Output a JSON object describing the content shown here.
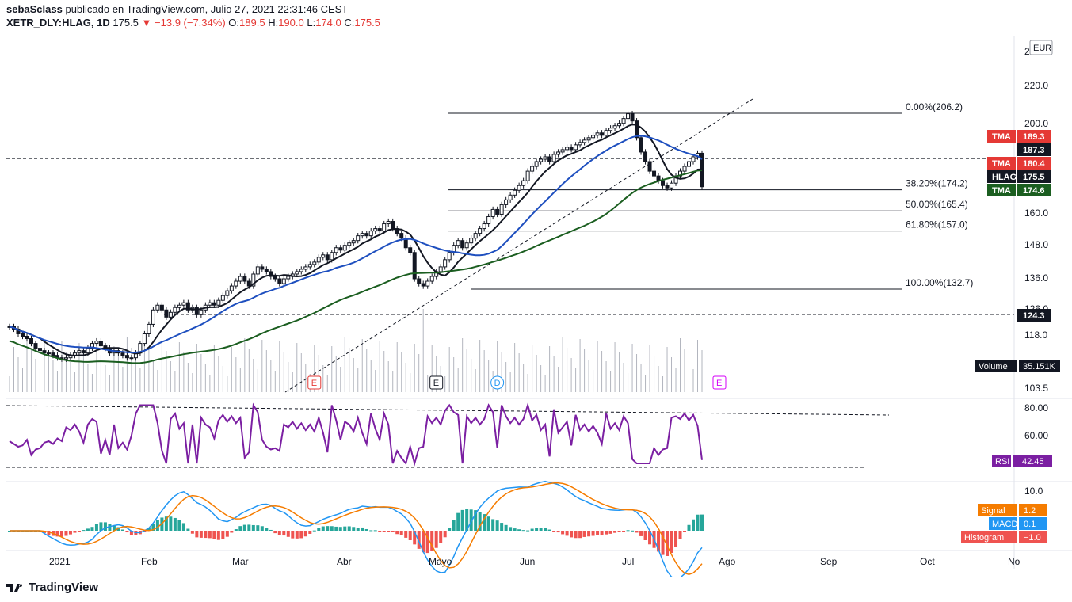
{
  "header": {
    "author": "sebaSclass",
    "published_text": "publicado en TradingView.com, Julio 27, 2021 22:31:46 CEST",
    "symbol": "XETR_DLY:HLAG, 1D",
    "last": "175.5",
    "change": "▼ −13.9 (−7.34%)",
    "o_label": "O:",
    "o": "189.5",
    "h_label": "H:",
    "h": "190.0",
    "l_label": "L:",
    "l": "174.0",
    "c_label": "C:",
    "c": "175.5"
  },
  "footer": {
    "brand": "TradingView"
  },
  "colors": {
    "up": "#131722",
    "down": "#131722",
    "tma_black": "#131722",
    "tma_red": "#e53935",
    "tma_blue": "#1e4fbf",
    "tma_green": "#1b5e20",
    "rsi": "#7b1fa2",
    "macd": "#2196f3",
    "signal": "#f57c00",
    "hist_up": "#26a69a",
    "hist_up_light": "#b2dfdb",
    "hist_down": "#ef5350",
    "hist_down_light": "#ffcdd2"
  },
  "chart_data": {
    "type": "candlestick",
    "currency": "EUR",
    "price_axis_ticks": [
      "2",
      "220.0",
      "200.0",
      "160.0",
      "148.0",
      "136.0",
      "126.0",
      "118.0",
      "103.5"
    ],
    "x_axis_labels": [
      "2021",
      "Feb",
      "Mar",
      "Abr",
      "Mayo",
      "Jun",
      "Jul",
      "Ago",
      "Sep",
      "Oct",
      "No"
    ],
    "fib_levels": [
      {
        "label": "0.00%(206.2)",
        "value": 206.2
      },
      {
        "label": "38.20%(174.2)",
        "value": 174.2
      },
      {
        "label": "50.00%(165.4)",
        "value": 165.4
      },
      {
        "label": "61.80%(157.0)",
        "value": 157.0
      },
      {
        "label": "100.00%(132.7)",
        "value": 132.7
      }
    ],
    "horizontal_lines": [
      187.3,
      124.3
    ],
    "price_badges": [
      {
        "label": "TMA",
        "value": "189.3",
        "color": "#e53935"
      },
      {
        "label": "",
        "value": "187.3",
        "color": "#131722"
      },
      {
        "label": "TMA",
        "value": "180.4",
        "color": "#e53935"
      },
      {
        "label": "HLAG",
        "value": "175.5",
        "color": "#131722"
      },
      {
        "label": "TMA",
        "value": "174.6",
        "color": "#1b5e20"
      },
      {
        "label": "",
        "value": "124.3",
        "color": "#131722"
      }
    ],
    "volume_badge": {
      "label": "Volume",
      "value": "35.151K"
    },
    "events": [
      {
        "label": "E",
        "color": "#e53935",
        "date_index": 70
      },
      {
        "label": "E",
        "color": "#131722",
        "date_index": 98
      },
      {
        "label": "D",
        "color": "#2196f3",
        "date_index": 112
      },
      {
        "label": "E",
        "color": "#d500f9",
        "date_index": 163
      }
    ],
    "close_series": [
      117,
      116,
      114,
      113,
      112,
      110,
      108,
      107,
      106,
      106,
      105,
      104,
      103.5,
      104,
      105,
      106,
      107,
      106,
      108,
      110,
      111,
      109,
      108,
      106,
      107,
      106,
      105,
      104,
      104,
      106,
      110,
      114,
      118,
      124,
      126,
      124,
      121,
      123,
      125,
      126,
      127,
      124,
      125,
      122,
      124,
      126,
      127,
      126,
      128,
      130,
      132,
      134,
      136,
      138,
      136,
      134,
      139,
      142,
      141,
      140,
      138,
      137,
      135,
      137,
      138,
      139,
      140,
      141,
      142,
      143,
      144,
      146,
      147,
      145,
      148,
      150,
      149,
      151,
      152,
      153,
      155,
      156,
      155,
      157,
      158,
      157,
      160,
      161,
      158,
      156,
      154,
      150,
      148,
      137,
      135,
      134,
      136,
      138,
      140,
      142,
      145,
      148,
      151,
      153,
      150,
      152,
      154,
      156,
      158,
      160,
      163,
      166,
      164,
      168,
      170,
      172,
      174,
      176,
      178,
      182,
      184,
      186,
      187,
      188,
      186,
      189,
      190,
      191,
      192,
      191,
      193,
      194,
      195,
      196,
      197,
      198,
      197,
      199,
      200,
      201,
      202,
      204,
      206,
      203,
      196,
      190,
      186,
      182,
      180,
      178,
      176,
      175,
      177,
      180,
      182,
      184,
      186,
      188,
      189.5,
      175.5
    ],
    "rsi": {
      "label": "RSI",
      "value": "42.45",
      "ticks": [
        "80.00",
        "60.00"
      ],
      "levels": [
        80,
        40
      ]
    },
    "macd": {
      "signal_label": "Signal",
      "signal": "1.2",
      "macd_label": "MACD",
      "macd": "0.1",
      "hist_label": "Histogram",
      "hist": "−1.0",
      "tick": "10.0"
    }
  }
}
